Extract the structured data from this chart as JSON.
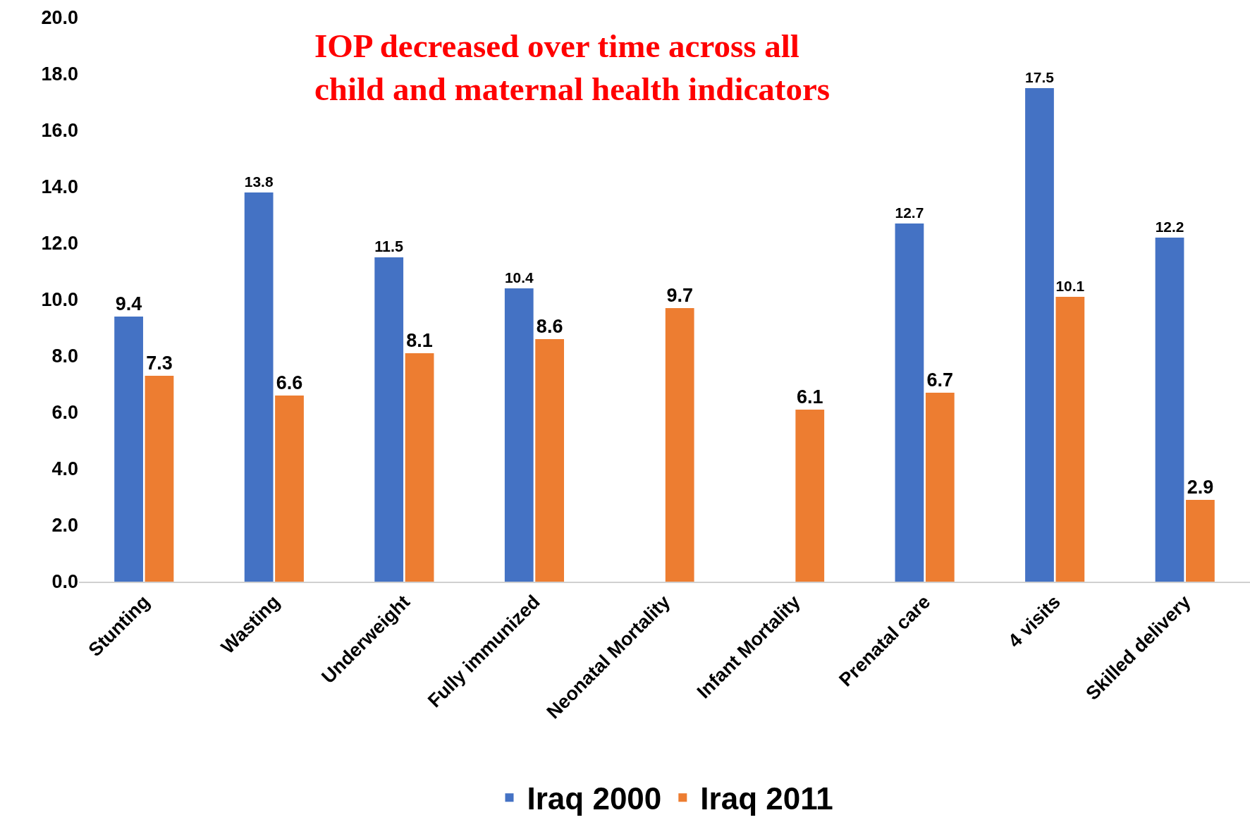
{
  "chart_data": {
    "type": "bar",
    "categories": [
      "Stunting",
      "Wasting",
      "Underweight",
      "Fully immunized",
      "Neonatal Mortality",
      "Infant Mortality",
      "Prenatal care",
      "4 visits",
      "Skilled delivery"
    ],
    "series": [
      {
        "name": "Iraq 2000",
        "color": "#4472c4",
        "values": [
          9.4,
          13.8,
          11.5,
          10.4,
          null,
          null,
          12.7,
          17.5,
          12.2
        ]
      },
      {
        "name": "Iraq 2011",
        "color": "#ed7d31",
        "values": [
          7.3,
          6.6,
          8.1,
          8.6,
          9.7,
          6.1,
          6.7,
          10.1,
          2.9
        ]
      }
    ],
    "ylim": [
      0,
      20
    ],
    "yticks": [
      {
        "value": 0,
        "label": "0.0"
      },
      {
        "value": 2,
        "label": "2.0"
      },
      {
        "value": 4,
        "label": "4.0"
      },
      {
        "value": 6,
        "label": "6.0"
      },
      {
        "value": 8,
        "label": "8.0"
      },
      {
        "value": 10,
        "label": "10.0"
      },
      {
        "value": 12,
        "label": "12.0"
      },
      {
        "value": 14,
        "label": "14.0"
      },
      {
        "value": 16,
        "label": "16.0"
      },
      {
        "value": 18,
        "label": "18.0"
      },
      {
        "value": 20,
        "label": "20.0"
      }
    ],
    "annotations": [
      "IOP decreased over time across all\nchild and maternal health indicators"
    ],
    "data_labels": true,
    "grid": false,
    "legend": "bottom"
  }
}
